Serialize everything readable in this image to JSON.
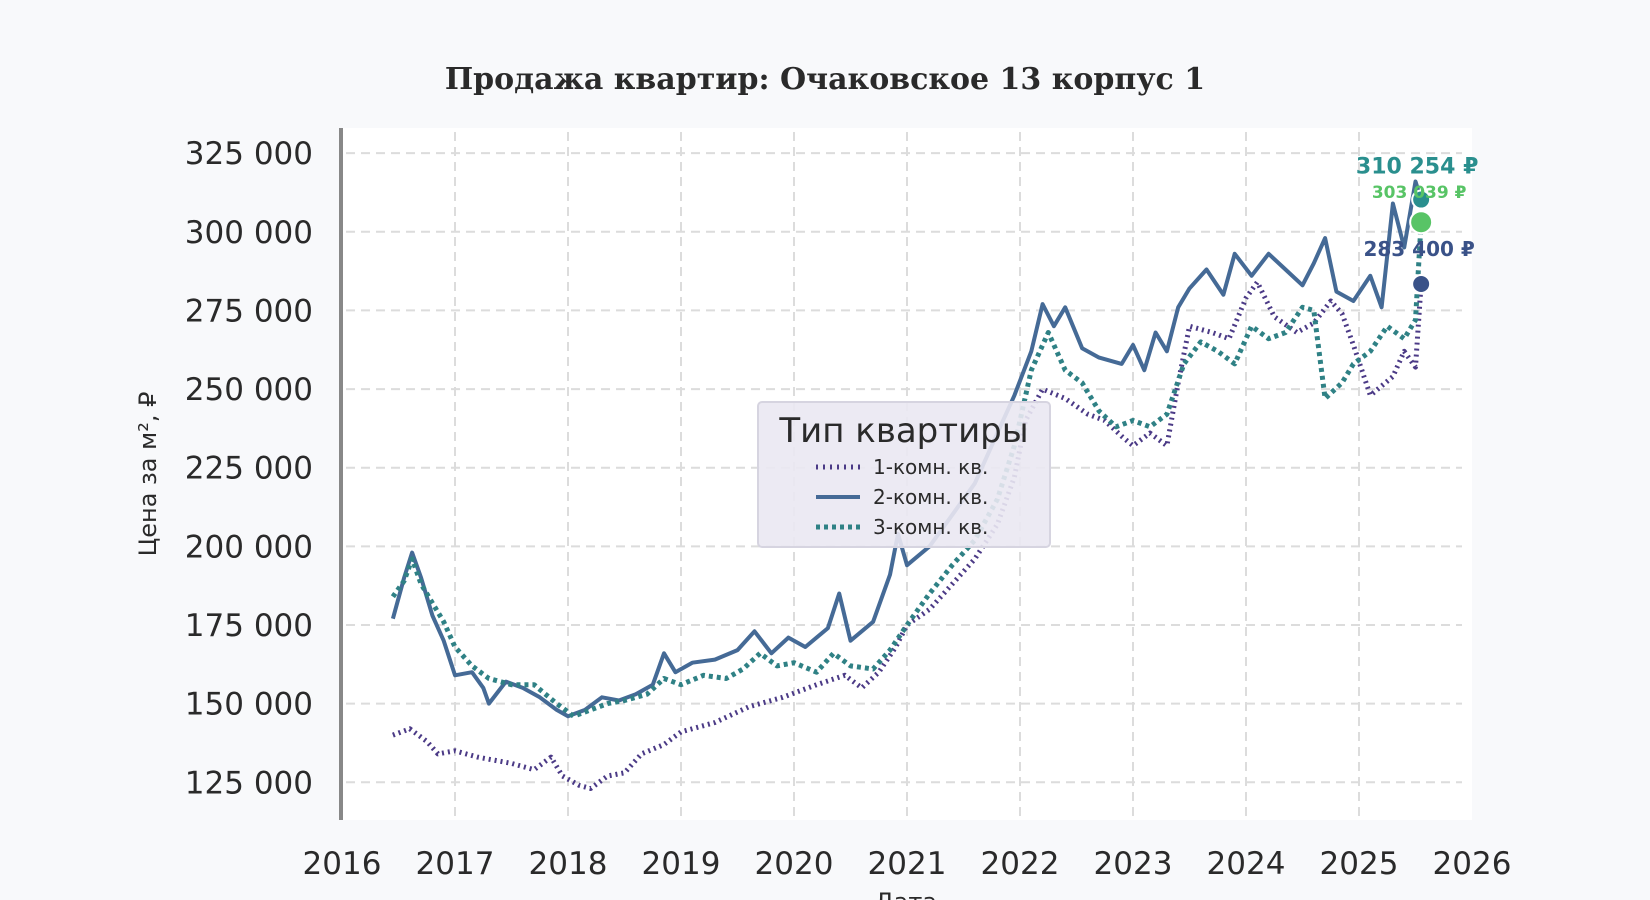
{
  "chart_data": {
    "type": "line",
    "title": "Продажа квартир: Очаковское 13 корпус 1",
    "xlabel": "Дата",
    "ylabel": "Цена за м², ₽",
    "xlim": [
      2016,
      2026
    ],
    "ylim": [
      113000,
      333000
    ],
    "x_ticks": [
      "2016",
      "2017",
      "2018",
      "2019",
      "2020",
      "2021",
      "2022",
      "2023",
      "2024",
      "2025",
      "2026"
    ],
    "y_ticks": [
      {
        "value": 125000,
        "label": "125 000"
      },
      {
        "value": 150000,
        "label": "150 000"
      },
      {
        "value": 175000,
        "label": "175 000"
      },
      {
        "value": 200000,
        "label": "200 000"
      },
      {
        "value": 225000,
        "label": "225 000"
      },
      {
        "value": 250000,
        "label": "250 000"
      },
      {
        "value": 275000,
        "label": "275 000"
      },
      {
        "value": 300000,
        "label": "300 000"
      },
      {
        "value": 325000,
        "label": "325 000"
      }
    ],
    "grid": true,
    "legend": {
      "title": "Тип квартиры",
      "position": "center"
    },
    "series": [
      {
        "name": "1-комн. кв.",
        "color": "#4b3a86",
        "style": "dotted",
        "points": [
          [
            2016.45,
            140000
          ],
          [
            2016.6,
            142000
          ],
          [
            2016.75,
            138000
          ],
          [
            2016.85,
            134000
          ],
          [
            2017.0,
            135000
          ],
          [
            2017.2,
            133000
          ],
          [
            2017.5,
            131000
          ],
          [
            2017.7,
            129000
          ],
          [
            2017.85,
            133000
          ],
          [
            2017.95,
            127000
          ],
          [
            2018.1,
            124000
          ],
          [
            2018.2,
            123000
          ],
          [
            2018.35,
            127000
          ],
          [
            2018.5,
            128000
          ],
          [
            2018.65,
            134000
          ],
          [
            2018.85,
            137000
          ],
          [
            2019.0,
            141000
          ],
          [
            2019.3,
            144000
          ],
          [
            2019.6,
            149000
          ],
          [
            2019.9,
            152000
          ],
          [
            2020.2,
            156000
          ],
          [
            2020.45,
            159000
          ],
          [
            2020.6,
            155000
          ],
          [
            2020.75,
            160000
          ],
          [
            2020.9,
            168000
          ],
          [
            2021.0,
            175000
          ],
          [
            2021.2,
            180000
          ],
          [
            2021.4,
            188000
          ],
          [
            2021.6,
            196000
          ],
          [
            2021.8,
            207000
          ],
          [
            2021.95,
            222000
          ],
          [
            2022.05,
            240000
          ],
          [
            2022.2,
            250000
          ],
          [
            2022.4,
            247000
          ],
          [
            2022.6,
            242000
          ],
          [
            2022.75,
            240000
          ],
          [
            2022.9,
            235000
          ],
          [
            2023.0,
            232000
          ],
          [
            2023.15,
            236000
          ],
          [
            2023.3,
            232000
          ],
          [
            2023.4,
            252000
          ],
          [
            2023.5,
            270000
          ],
          [
            2023.7,
            268000
          ],
          [
            2023.85,
            266000
          ],
          [
            2024.0,
            279000
          ],
          [
            2024.1,
            284000
          ],
          [
            2024.25,
            273000
          ],
          [
            2024.45,
            268000
          ],
          [
            2024.6,
            271000
          ],
          [
            2024.75,
            278000
          ],
          [
            2024.85,
            274000
          ],
          [
            2024.95,
            264000
          ],
          [
            2025.1,
            248000
          ],
          [
            2025.3,
            254000
          ],
          [
            2025.4,
            262000
          ],
          [
            2025.5,
            257000
          ],
          [
            2025.55,
            283400
          ]
        ]
      },
      {
        "name": "2-комн. кв.",
        "color": "#456a96",
        "style": "solid",
        "points": [
          [
            2016.45,
            177000
          ],
          [
            2016.55,
            190000
          ],
          [
            2016.62,
            198000
          ],
          [
            2016.7,
            190000
          ],
          [
            2016.8,
            178000
          ],
          [
            2016.9,
            170000
          ],
          [
            2017.0,
            159000
          ],
          [
            2017.15,
            160000
          ],
          [
            2017.25,
            155000
          ],
          [
            2017.3,
            150000
          ],
          [
            2017.45,
            157000
          ],
          [
            2017.6,
            155000
          ],
          [
            2017.75,
            152000
          ],
          [
            2017.9,
            148000
          ],
          [
            2018.0,
            146000
          ],
          [
            2018.15,
            148000
          ],
          [
            2018.3,
            152000
          ],
          [
            2018.45,
            151000
          ],
          [
            2018.6,
            153000
          ],
          [
            2018.75,
            156000
          ],
          [
            2018.85,
            166000
          ],
          [
            2018.95,
            160000
          ],
          [
            2019.1,
            163000
          ],
          [
            2019.3,
            164000
          ],
          [
            2019.5,
            167000
          ],
          [
            2019.65,
            173000
          ],
          [
            2019.8,
            166000
          ],
          [
            2019.95,
            171000
          ],
          [
            2020.1,
            168000
          ],
          [
            2020.3,
            174000
          ],
          [
            2020.4,
            185000
          ],
          [
            2020.5,
            170000
          ],
          [
            2020.7,
            176000
          ],
          [
            2020.85,
            191000
          ],
          [
            2020.92,
            204000
          ],
          [
            2021.0,
            194000
          ],
          [
            2021.2,
            200000
          ],
          [
            2021.4,
            210000
          ],
          [
            2021.6,
            220000
          ],
          [
            2021.8,
            236000
          ],
          [
            2021.95,
            248000
          ],
          [
            2022.1,
            262000
          ],
          [
            2022.2,
            277000
          ],
          [
            2022.3,
            270000
          ],
          [
            2022.4,
            276000
          ],
          [
            2022.55,
            263000
          ],
          [
            2022.7,
            260000
          ],
          [
            2022.9,
            258000
          ],
          [
            2023.0,
            264000
          ],
          [
            2023.1,
            256000
          ],
          [
            2023.2,
            268000
          ],
          [
            2023.3,
            262000
          ],
          [
            2023.4,
            276000
          ],
          [
            2023.5,
            282000
          ],
          [
            2023.65,
            288000
          ],
          [
            2023.8,
            280000
          ],
          [
            2023.9,
            293000
          ],
          [
            2024.05,
            286000
          ],
          [
            2024.2,
            293000
          ],
          [
            2024.35,
            288000
          ],
          [
            2024.5,
            283000
          ],
          [
            2024.6,
            290000
          ],
          [
            2024.7,
            298000
          ],
          [
            2024.8,
            281000
          ],
          [
            2024.95,
            278000
          ],
          [
            2025.1,
            286000
          ],
          [
            2025.2,
            276000
          ],
          [
            2025.3,
            309000
          ],
          [
            2025.4,
            295000
          ],
          [
            2025.5,
            316000
          ],
          [
            2025.55,
            310254
          ]
        ]
      },
      {
        "name": "3-комн. кв.",
        "color": "#2f8185",
        "style": "dotted-diamond",
        "points": [
          [
            2016.45,
            184000
          ],
          [
            2016.55,
            189000
          ],
          [
            2016.62,
            196000
          ],
          [
            2016.7,
            188000
          ],
          [
            2016.8,
            182000
          ],
          [
            2016.9,
            176000
          ],
          [
            2017.0,
            168000
          ],
          [
            2017.15,
            162000
          ],
          [
            2017.3,
            158000
          ],
          [
            2017.5,
            156000
          ],
          [
            2017.7,
            156000
          ],
          [
            2017.9,
            150000
          ],
          [
            2018.05,
            146000
          ],
          [
            2018.2,
            148000
          ],
          [
            2018.35,
            150000
          ],
          [
            2018.5,
            151000
          ],
          [
            2018.7,
            153000
          ],
          [
            2018.85,
            158000
          ],
          [
            2019.0,
            156000
          ],
          [
            2019.2,
            159000
          ],
          [
            2019.4,
            158000
          ],
          [
            2019.55,
            161000
          ],
          [
            2019.7,
            166000
          ],
          [
            2019.85,
            162000
          ],
          [
            2020.0,
            163000
          ],
          [
            2020.2,
            160000
          ],
          [
            2020.35,
            166000
          ],
          [
            2020.5,
            162000
          ],
          [
            2020.7,
            161000
          ],
          [
            2020.85,
            167000
          ],
          [
            2021.0,
            175000
          ],
          [
            2021.2,
            185000
          ],
          [
            2021.4,
            194000
          ],
          [
            2021.6,
            202000
          ],
          [
            2021.8,
            215000
          ],
          [
            2021.95,
            232000
          ],
          [
            2022.1,
            256000
          ],
          [
            2022.25,
            268000
          ],
          [
            2022.4,
            256000
          ],
          [
            2022.55,
            252000
          ],
          [
            2022.7,
            243000
          ],
          [
            2022.85,
            238000
          ],
          [
            2023.0,
            240000
          ],
          [
            2023.15,
            238000
          ],
          [
            2023.3,
            242000
          ],
          [
            2023.45,
            258000
          ],
          [
            2023.6,
            265000
          ],
          [
            2023.75,
            262000
          ],
          [
            2023.9,
            258000
          ],
          [
            2024.05,
            270000
          ],
          [
            2024.2,
            266000
          ],
          [
            2024.35,
            268000
          ],
          [
            2024.5,
            276000
          ],
          [
            2024.6,
            275000
          ],
          [
            2024.7,
            247000
          ],
          [
            2024.85,
            252000
          ],
          [
            2024.95,
            258000
          ],
          [
            2025.1,
            262000
          ],
          [
            2025.25,
            270000
          ],
          [
            2025.4,
            266000
          ],
          [
            2025.5,
            272000
          ],
          [
            2025.55,
            303039
          ]
        ]
      }
    ],
    "end_labels": [
      {
        "text": "310 254 ₽",
        "value": 310254,
        "color": "#2a8f8e"
      },
      {
        "text": "303 039 ₽",
        "value": 303039,
        "color": "#58c466"
      },
      {
        "text": "283 400 ₽",
        "value": 283400,
        "color": "#3a5288"
      }
    ],
    "end_markers_x": 2025.55
  }
}
